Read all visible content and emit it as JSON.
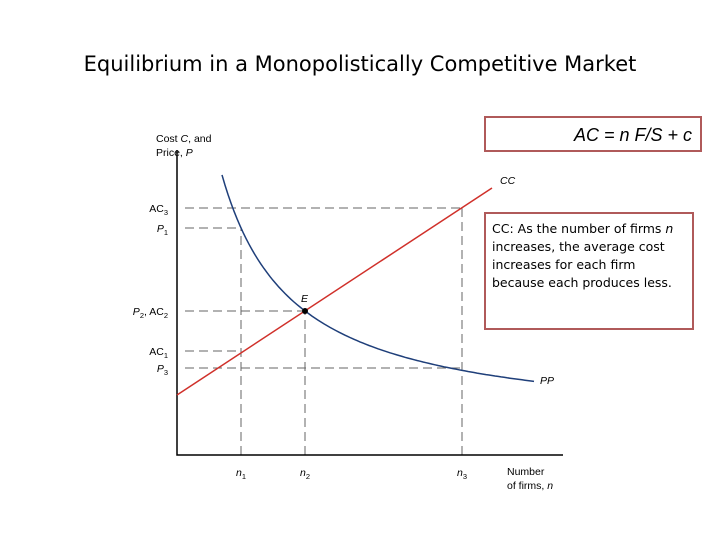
{
  "title": "Equilibrium in a Monopolistically Competitive Market",
  "formula": "AC = n F/S + c",
  "note": {
    "before": "CC: As the number of firms ",
    "var": "n",
    "after": " increases, the average cost increases for each firm because each produces less."
  },
  "y_axis_label": {
    "line1": [
      "Cost ",
      "C",
      ", and"
    ],
    "line2": [
      "Price, ",
      "P"
    ]
  },
  "x_axis_label": {
    "line1": "Number",
    "line2": [
      "of firms, ",
      "n"
    ]
  },
  "curves": {
    "cc": "CC",
    "pp": "PP",
    "e": "E"
  },
  "y_labels": [
    [
      {
        "main": "AC",
        "sub": "3"
      }
    ],
    [
      {
        "main": "P",
        "sub": "1"
      }
    ],
    [
      {
        "main": "P",
        "sub": "2"
      },
      {
        "main": ", AC",
        "sub": "2"
      }
    ],
    [
      {
        "main": "AC",
        "sub": "1"
      }
    ],
    [
      {
        "main": "P",
        "sub": "3"
      }
    ]
  ],
  "x_labels": [
    {
      "main": "n",
      "sub": "1"
    },
    {
      "main": "n",
      "sub": "2"
    },
    {
      "main": "n",
      "sub": "3"
    }
  ]
}
